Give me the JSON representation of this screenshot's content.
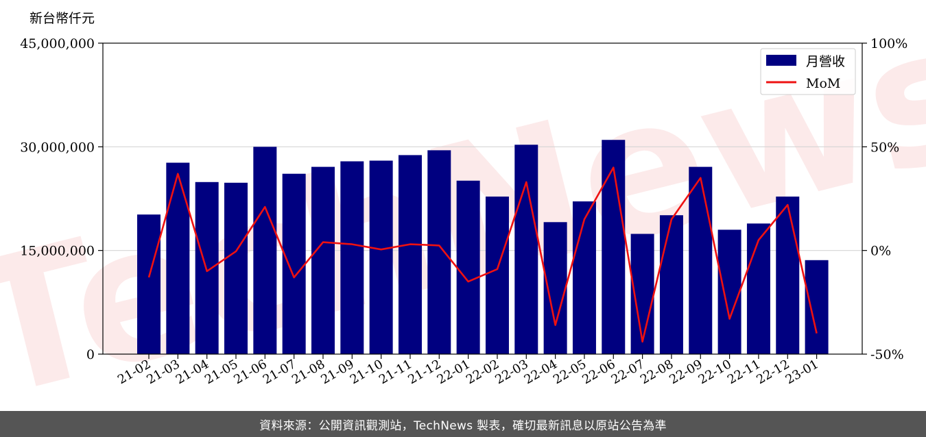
{
  "chart_data": {
    "type": "bar",
    "ylabel": "新台幣仟元",
    "categories": [
      "21-02",
      "21-03",
      "21-04",
      "21-05",
      "21-06",
      "21-07",
      "21-08",
      "21-09",
      "21-10",
      "21-11",
      "21-12",
      "22-01",
      "22-02",
      "22-03",
      "22-04",
      "22-05",
      "22-06",
      "22-07",
      "22-08",
      "22-09",
      "22-10",
      "22-11",
      "22-12",
      "23-01"
    ],
    "series": [
      {
        "name": "月營收",
        "type": "bar",
        "axis": "left",
        "color": "#000080",
        "values": [
          20200000,
          27700000,
          24900000,
          24800000,
          30000000,
          26100000,
          27100000,
          27900000,
          28000000,
          28800000,
          29500000,
          25100000,
          22800000,
          30300000,
          19100000,
          22100000,
          31000000,
          17400000,
          20100000,
          27100000,
          18000000,
          18900000,
          22800000,
          13600000
        ]
      },
      {
        "name": "MoM",
        "type": "line",
        "axis": "right",
        "color": "#ee1111",
        "values": [
          -13,
          37,
          -10,
          -0.4,
          21,
          -13,
          4,
          3,
          0.5,
          3,
          2.4,
          -15,
          -9,
          33,
          -36,
          15,
          40,
          -44,
          15,
          35,
          -33,
          5,
          22,
          -40
        ]
      }
    ],
    "ylim": [
      0,
      45000000
    ],
    "yticks": [
      "0",
      "15,000,000",
      "30,000,000",
      "45,000,000"
    ],
    "ytick_values": [
      0,
      15000000,
      30000000,
      45000000
    ],
    "y2lim": [
      -50,
      100
    ],
    "y2ticks": [
      "-50%",
      "0%",
      "50%",
      "100%"
    ],
    "y2tick_values": [
      -50,
      0,
      50,
      100
    ],
    "grid": "horizontal",
    "legend": "top-right",
    "watermark": "TechNews"
  },
  "footer": {
    "text": "資料來源：公開資訊觀測站，TechNews 製表，確切最新訊息以原站公告為準"
  }
}
